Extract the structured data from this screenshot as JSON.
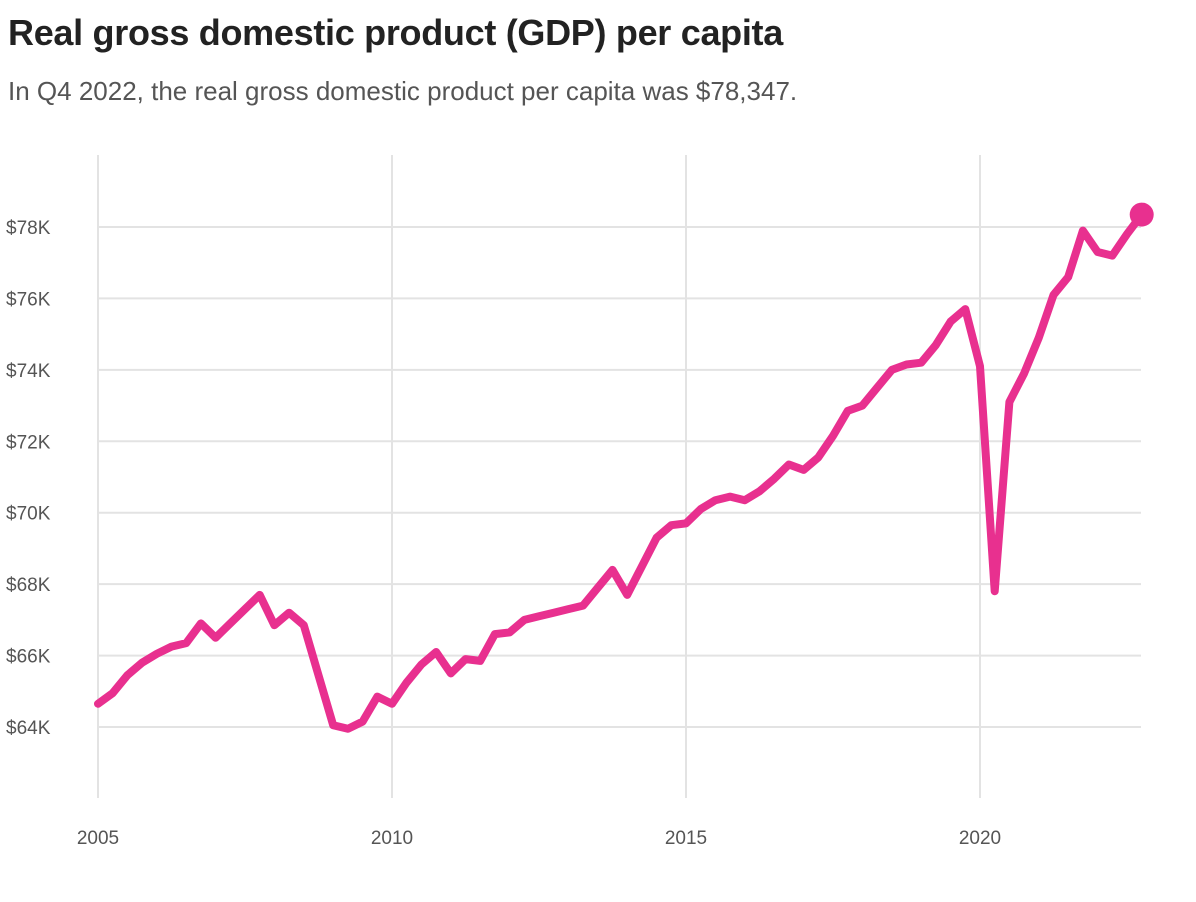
{
  "title": "Real gross domestic product (GDP) per capita",
  "subtitle": "In Q4 2022, the real gross domestic product per capita was $78,347.",
  "colors": {
    "line": "#e8308f",
    "grid": "#e3e3e3",
    "tick_text": "#555555",
    "title": "#222222"
  },
  "chart_data": {
    "type": "line",
    "title": "Real gross domestic product (GDP) per capita",
    "subtitle": "In Q4 2022, the real gross domestic product per capita was $78,347.",
    "xlabel": "",
    "ylabel": "",
    "xlim": [
      2005,
      2022.75
    ],
    "ylim": [
      62000,
      80000
    ],
    "x_ticks": [
      2005,
      2010,
      2015,
      2020
    ],
    "x_tick_labels": [
      "2005",
      "2010",
      "2015",
      "2020"
    ],
    "y_ticks": [
      64000,
      66000,
      68000,
      70000,
      72000,
      74000,
      76000,
      78000
    ],
    "y_tick_labels": [
      "$64K",
      "$66K",
      "$68K",
      "$70K",
      "$72K",
      "$74K",
      "$76K",
      "$78K"
    ],
    "grid": true,
    "end_marker": true,
    "series": [
      {
        "x": [
          2005.0,
          2005.25,
          2005.5,
          2005.75,
          2006.0,
          2006.25,
          2006.5,
          2006.75,
          2007.0,
          2007.25,
          2007.5,
          2007.75,
          2008.0,
          2008.25,
          2008.5,
          2008.75,
          2009.0,
          2009.25,
          2009.5,
          2009.75,
          2010.0,
          2010.25,
          2010.5,
          2010.75,
          2011.0,
          2011.25,
          2011.5,
          2011.75,
          2012.0,
          2012.25,
          2012.5,
          2012.75,
          2013.0,
          2013.25,
          2013.5,
          2013.75,
          2014.0,
          2014.25,
          2014.5,
          2014.75,
          2015.0,
          2015.25,
          2015.5,
          2015.75,
          2016.0,
          2016.25,
          2016.5,
          2016.75,
          2017.0,
          2017.25,
          2017.5,
          2017.75,
          2018.0,
          2018.25,
          2018.5,
          2018.75,
          2019.0,
          2019.25,
          2019.5,
          2019.75,
          2020.0,
          2020.25,
          2020.5,
          2020.75,
          2021.0,
          2021.25,
          2021.5,
          2021.75,
          2022.0,
          2022.25,
          2022.5,
          2022.75
        ],
        "values": [
          64650,
          64950,
          65450,
          65800,
          66050,
          66250,
          66350,
          66900,
          66500,
          66900,
          67300,
          67700,
          66850,
          67200,
          66850,
          65450,
          64050,
          63950,
          64150,
          64850,
          64650,
          65250,
          65750,
          66100,
          65500,
          65900,
          65850,
          66600,
          66650,
          67000,
          67100,
          67200,
          67300,
          67400,
          67900,
          68400,
          67700,
          68500,
          69300,
          69650,
          69700,
          70100,
          70350,
          70450,
          70350,
          70600,
          70950,
          71350,
          71200,
          71550,
          72150,
          72850,
          73000,
          73500,
          74000,
          74150,
          74200,
          74700,
          75350,
          75700,
          74100,
          67800,
          73100,
          73900,
          74900,
          76100,
          76600,
          77900,
          77300,
          77200,
          77800,
          78347
        ]
      }
    ]
  }
}
